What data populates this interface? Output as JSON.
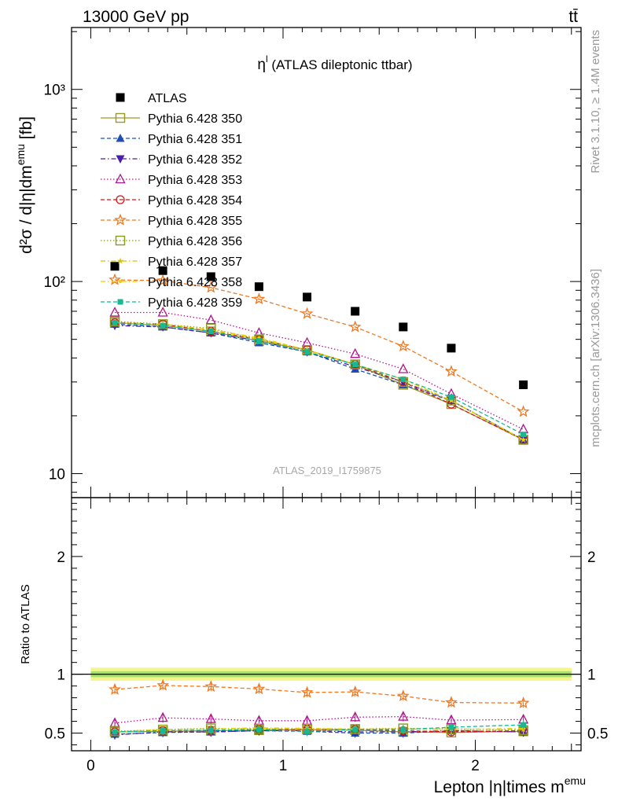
{
  "header": {
    "energy_label": "13000 GeV pp",
    "process_label": "tt̄"
  },
  "side_labels": {
    "rivet": "Rivet 3.1.10, ≥ 1.4M events",
    "mcplots": "mcplots.cern.ch [arXiv:1306.3436]"
  },
  "chart_data": [
    {
      "type": "scatter",
      "title": "η",
      "title_sup": "l",
      "title_rest": " (ATLAS dileptonic ttbar)",
      "analysis_id": "ATLAS_2019_I1759875",
      "ylabel": "d²σ / d|η|dm",
      "ylabel_sup": "emu",
      "ylabel_unit": " [fb]",
      "yscale": "log",
      "xlim": [
        -0.1,
        2.55
      ],
      "ylim": [
        7.5,
        2100
      ],
      "ytick_labels": [
        {
          "value": 10,
          "text": "10"
        },
        {
          "value": 100,
          "text": "10²"
        },
        {
          "value": 1000,
          "text": "10³"
        }
      ],
      "legend_position": "top-left",
      "x": [
        0.125,
        0.375,
        0.625,
        0.875,
        1.125,
        1.375,
        1.625,
        1.875,
        2.25
      ],
      "series": [
        {
          "name": "ATLAS",
          "color": "#000000",
          "marker": "square-filled",
          "dash": "none",
          "values": [
            120,
            114,
            106,
            94,
            83,
            70,
            58,
            45,
            29
          ]
        },
        {
          "name": "Pythia 6.428 350",
          "color": "#9a9a2a",
          "marker": "square-open",
          "dash": "solid",
          "values": [
            61,
            59,
            55,
            49,
            44,
            37,
            29,
            23,
            15
          ]
        },
        {
          "name": "Pythia 6.428 351",
          "color": "#1f4fb4",
          "marker": "triangle-up-filled",
          "dash": "dashed",
          "values": [
            60,
            58,
            54,
            48,
            43,
            35,
            29,
            24,
            15
          ]
        },
        {
          "name": "Pythia 6.428 352",
          "color": "#4a1fa8",
          "marker": "triangle-down-filled",
          "dash": "dashdot",
          "values": [
            59,
            58,
            54,
            49,
            43,
            36,
            30,
            24,
            15
          ]
        },
        {
          "name": "Pythia 6.428 353",
          "color": "#b0148c",
          "marker": "triangle-up-open",
          "dash": "dotted",
          "values": [
            69,
            69,
            63,
            54,
            48,
            42,
            35,
            26,
            17
          ]
        },
        {
          "name": "Pythia 6.428 354",
          "color": "#d41818",
          "marker": "circle-open",
          "dash": "dashed",
          "values": [
            61,
            60,
            55,
            50,
            44,
            37,
            30,
            23,
            15
          ]
        },
        {
          "name": "Pythia 6.428 355",
          "color": "#f07820",
          "marker": "star-open",
          "dash": "dashed",
          "values": [
            102,
            101,
            93,
            81,
            68,
            58,
            46,
            34,
            21
          ]
        },
        {
          "name": "Pythia 6.428 356",
          "color": "#8a9a1a",
          "marker": "square-open",
          "dash": "dotted",
          "values": [
            62,
            60,
            57,
            50,
            44,
            37,
            30,
            24,
            15
          ]
        },
        {
          "name": "Pythia 6.428 357",
          "color": "#d4c400",
          "marker": "tri-star",
          "dash": "dashdot",
          "values": [
            61,
            60,
            56,
            50,
            44,
            37,
            31,
            24,
            15
          ]
        },
        {
          "name": "Pythia 6.428 358",
          "color": "#e8d000",
          "marker": "dot",
          "dash": "dashdot",
          "values": [
            61,
            60,
            56,
            51,
            44,
            37,
            31,
            24,
            15
          ]
        },
        {
          "name": "Pythia 6.428 359",
          "color": "#18b890",
          "marker": "square-filled-small",
          "dash": "dashed",
          "values": [
            61,
            59,
            55,
            49,
            43,
            37,
            31,
            25,
            16
          ]
        }
      ]
    },
    {
      "type": "scatter",
      "ylabel": "Ratio to ATLAS",
      "xlabel": "Lepton |η|times m",
      "xlabel_sup": "emu",
      "xlim": [
        -0.1,
        2.55
      ],
      "ylim": [
        0.35,
        2.5
      ],
      "xticks": [
        0,
        1,
        2
      ],
      "yticks": [
        0.5,
        1,
        2
      ],
      "reference_band": {
        "value": 1.0,
        "inner": [
          0.975,
          1.025
        ],
        "outer": [
          0.945,
          1.055
        ]
      },
      "x": [
        0.125,
        0.375,
        0.625,
        0.875,
        1.125,
        1.375,
        1.625,
        1.875,
        2.25
      ],
      "series": [
        {
          "name": "Pythia 6.428 350",
          "values": [
            0.51,
            0.515,
            0.52,
            0.525,
            0.53,
            0.525,
            0.51,
            0.505,
            0.515
          ]
        },
        {
          "name": "Pythia 6.428 351",
          "values": [
            0.49,
            0.505,
            0.51,
            0.52,
            0.515,
            0.5,
            0.5,
            0.52,
            0.51
          ]
        },
        {
          "name": "Pythia 6.428 352",
          "values": [
            0.485,
            0.51,
            0.51,
            0.52,
            0.52,
            0.51,
            0.51,
            0.52,
            0.51
          ]
        },
        {
          "name": "Pythia 6.428 353",
          "values": [
            0.585,
            0.63,
            0.62,
            0.605,
            0.605,
            0.635,
            0.64,
            0.61,
            0.615
          ]
        },
        {
          "name": "Pythia 6.428 354",
          "values": [
            0.51,
            0.52,
            0.52,
            0.53,
            0.53,
            0.53,
            0.52,
            0.51,
            0.52
          ]
        },
        {
          "name": "Pythia 6.428 355",
          "values": [
            0.87,
            0.905,
            0.895,
            0.875,
            0.845,
            0.85,
            0.815,
            0.76,
            0.755
          ]
        },
        {
          "name": "Pythia 6.428 356",
          "values": [
            0.515,
            0.53,
            0.54,
            0.535,
            0.535,
            0.535,
            0.54,
            0.535,
            0.525
          ]
        },
        {
          "name": "Pythia 6.428 357",
          "values": [
            0.51,
            0.53,
            0.535,
            0.54,
            0.535,
            0.53,
            0.535,
            0.535,
            0.53
          ]
        },
        {
          "name": "Pythia 6.428 358",
          "values": [
            0.51,
            0.53,
            0.535,
            0.545,
            0.54,
            0.535,
            0.535,
            0.53,
            0.54
          ]
        },
        {
          "name": "Pythia 6.428 359",
          "values": [
            0.51,
            0.52,
            0.525,
            0.53,
            0.515,
            0.53,
            0.53,
            0.55,
            0.57
          ]
        }
      ]
    }
  ]
}
